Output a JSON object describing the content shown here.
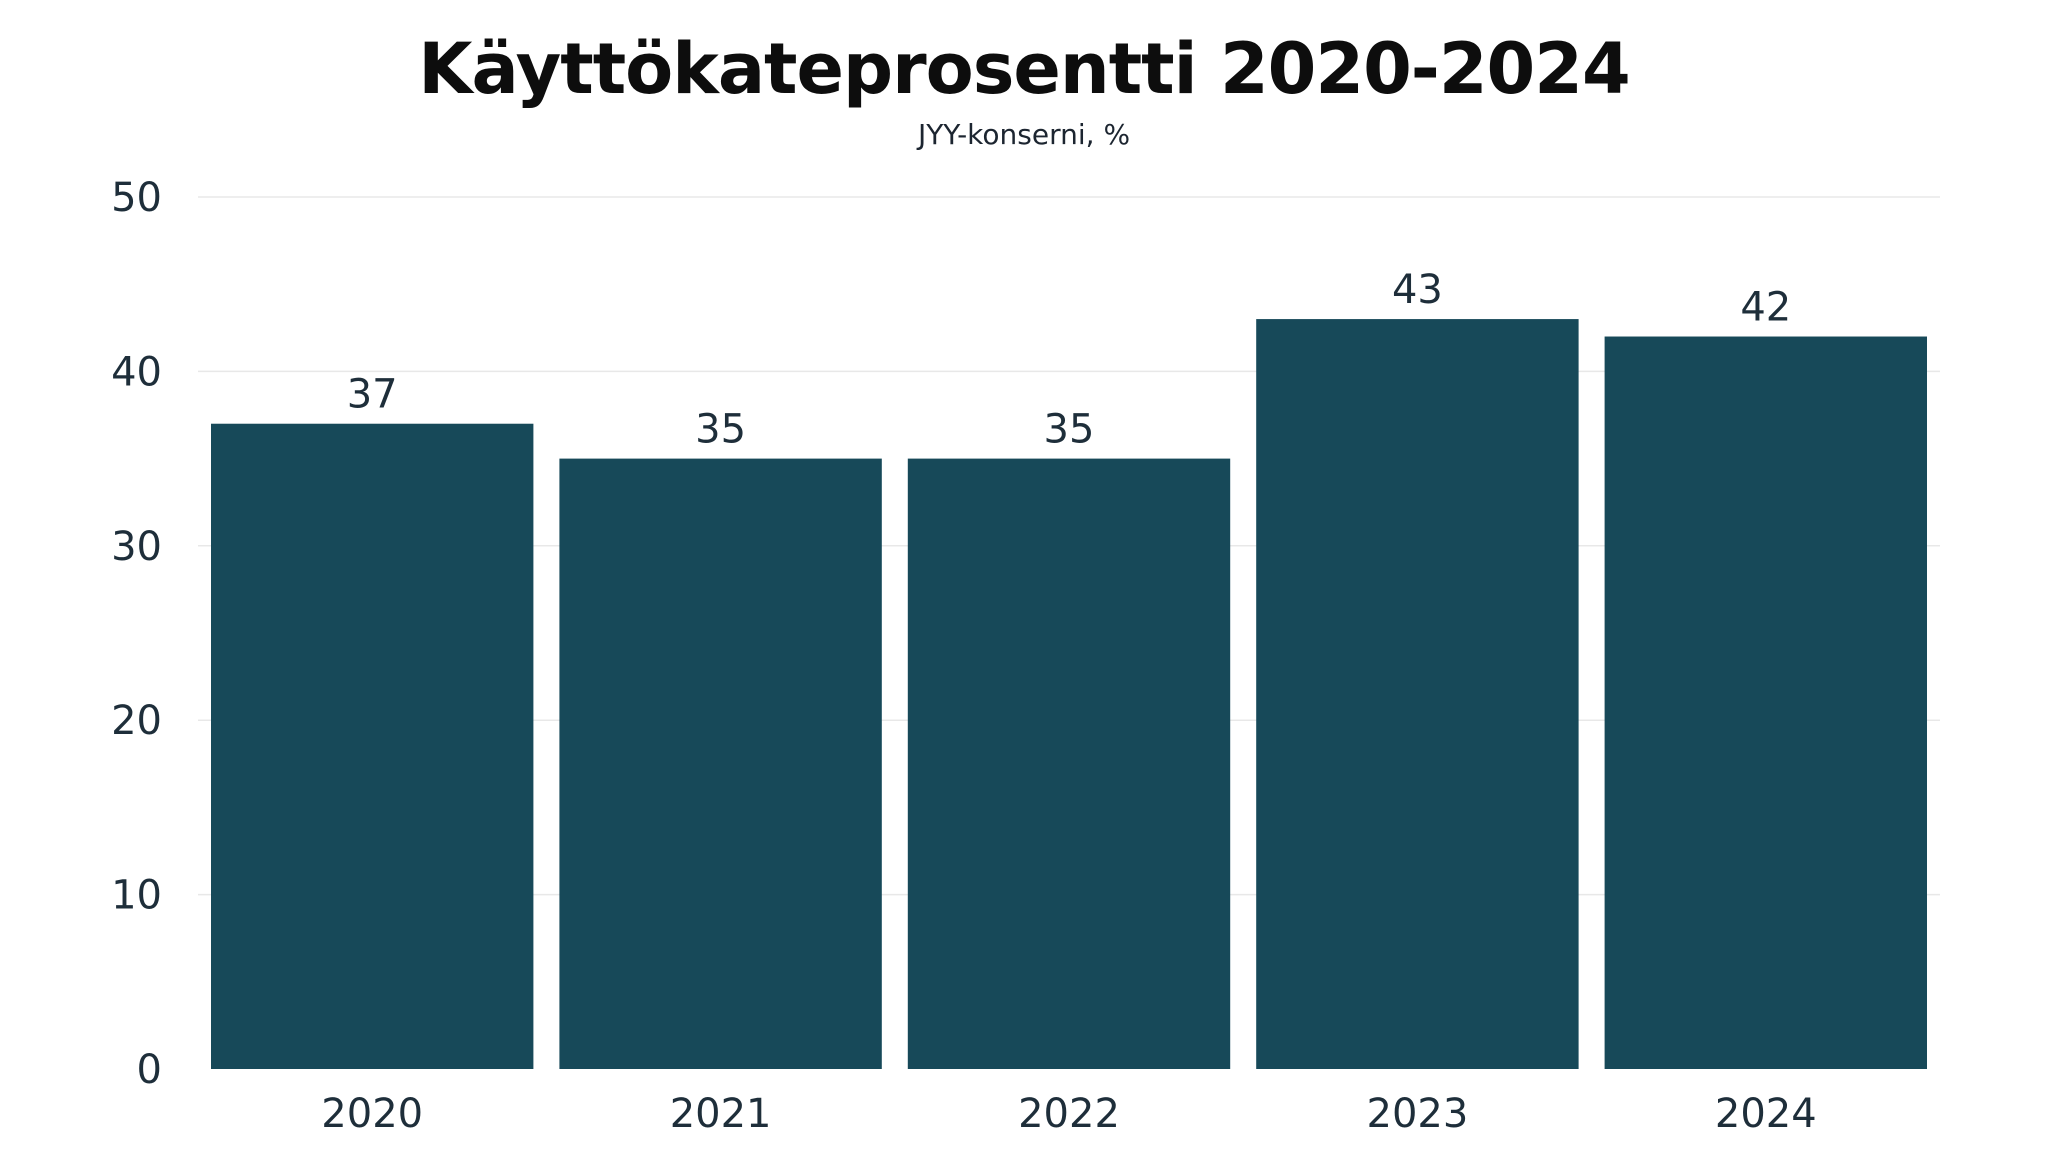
{
  "chart_data": {
    "type": "bar",
    "title": "Käyttökateprosentti 2020-2024",
    "subtitle": "JYY-konserni, %",
    "categories": [
      "2020",
      "2021",
      "2022",
      "2023",
      "2024"
    ],
    "values": [
      37,
      35,
      35,
      43,
      42
    ],
    "data_labels": [
      "37",
      "35",
      "35",
      "43",
      "42"
    ],
    "ylim": [
      0,
      50
    ],
    "yticks": [
      0,
      10,
      20,
      30,
      40,
      50
    ],
    "ytick_labels": [
      "0",
      "10",
      "20",
      "30",
      "40",
      "50"
    ],
    "xlabel": "",
    "ylabel": "",
    "grid": true,
    "legend": "none",
    "colors": {
      "bar": "#174959",
      "grid": "#e8e8e8",
      "text": "#1e2e3a",
      "title": "#0d0d0d"
    }
  }
}
